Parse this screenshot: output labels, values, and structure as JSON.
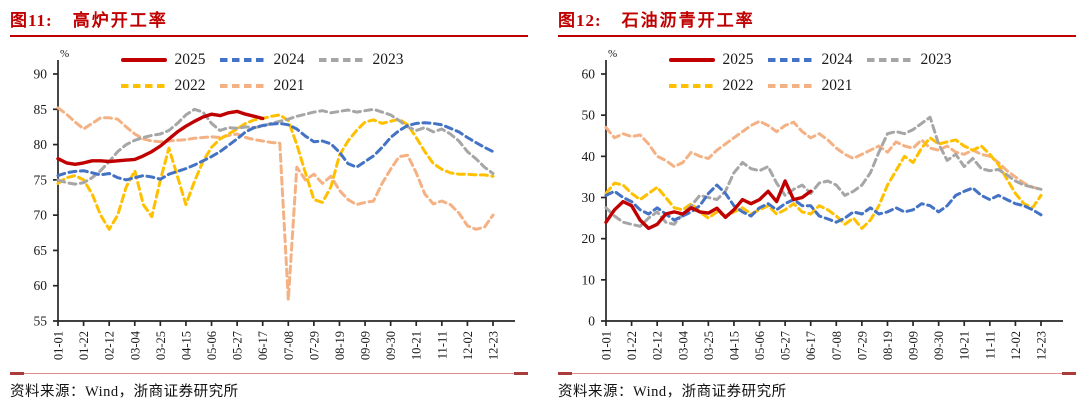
{
  "charts": [
    {
      "figure_label": "图11:",
      "title": "高炉开工率",
      "source": "资料来源：Wind，浙商证券研究所"
    },
    {
      "figure_label": "图12:",
      "title": "石油沥青开工率",
      "source": "资料来源：Wind，浙商证券研究所"
    }
  ],
  "colors": {
    "title_red": "#c00000",
    "header_rule": "#c00000",
    "footer_rule_thin": "#e58b8b",
    "footer_rule_caps": "#ab3c3c",
    "series_2025": "#c00000",
    "series_2024": "#4472c4",
    "series_2023": "#a6a6a6",
    "series_2022": "#ffc000",
    "series_2021": "#f4b183"
  },
  "chart_data": [
    {
      "type": "line",
      "title": "高炉开工率",
      "unit": "%",
      "ylim": [
        55,
        90
      ],
      "ytick_step": 5,
      "grid": false,
      "legend_position": "top-inside",
      "legend_rows": [
        [
          "2025",
          "2024",
          "2023"
        ],
        [
          "2022",
          "2021"
        ]
      ],
      "x_tick_labels": [
        "01-01",
        "01-22",
        "02-12",
        "03-04",
        "03-25",
        "04-15",
        "05-06",
        "05-27",
        "06-17",
        "07-08",
        "07-29",
        "08-19",
        "09-09",
        "09-30",
        "10-21",
        "11-11",
        "12-02",
        "12-23"
      ],
      "x_weeks_total": 51,
      "tick_every_weeks": 3,
      "series": [
        {
          "name": "2025",
          "color": "#c00000",
          "dash": "solid",
          "width": 3.4,
          "values": [
            78,
            77.4,
            77.2,
            77.4,
            77.7,
            77.7,
            77.6,
            77.7,
            77.8,
            77.9,
            78.4,
            79.0,
            79.8,
            80.8,
            81.8,
            82.6,
            83.3,
            83.9,
            84.3,
            84.1,
            84.5,
            84.7,
            84.3,
            84.0,
            83.7,
            null,
            null,
            null,
            null,
            null,
            null,
            null,
            null,
            null,
            null,
            null,
            null,
            null,
            null,
            null,
            null,
            null,
            null,
            null,
            null,
            null,
            null,
            null,
            null,
            null,
            null,
            null
          ]
        },
        {
          "name": "2024",
          "color": "#4472c4",
          "dash": "dashed",
          "width": 3,
          "values": [
            75.6,
            76.0,
            76.2,
            76.3,
            76.0,
            75.7,
            75.9,
            75.3,
            75.0,
            75.3,
            75.6,
            75.4,
            75.1,
            75.8,
            76.2,
            76.6,
            77.1,
            77.7,
            78.3,
            79.0,
            79.9,
            80.8,
            81.8,
            82.4,
            82.7,
            82.9,
            83.0,
            82.8,
            82.2,
            81.2,
            80.4,
            80.5,
            80.1,
            78.9,
            77.3,
            76.8,
            77.6,
            78.4,
            79.6,
            81.0,
            82.0,
            82.7,
            83.0,
            83.1,
            83.0,
            82.8,
            82.3,
            81.8,
            81.0,
            80.3,
            79.6,
            79.0
          ]
        },
        {
          "name": "2023",
          "color": "#a6a6a6",
          "dash": "dashed",
          "width": 3,
          "values": [
            75.0,
            74.6,
            74.4,
            74.6,
            75.3,
            76.3,
            77.6,
            79.0,
            80.0,
            80.6,
            81.0,
            81.3,
            81.5,
            82.0,
            83.0,
            84.2,
            85.0,
            84.6,
            83.0,
            82.0,
            82.4,
            82.3,
            82.5,
            82.4,
            82.6,
            83.0,
            83.3,
            83.6,
            84.0,
            84.3,
            84.6,
            84.8,
            84.5,
            84.7,
            84.9,
            84.6,
            84.8,
            85.0,
            84.6,
            84.2,
            83.4,
            82.5,
            82.0,
            82.4,
            81.8,
            82.2,
            81.5,
            80.5,
            79.0,
            78.0,
            76.8,
            75.9
          ]
        },
        {
          "name": "2022",
          "color": "#ffc000",
          "dash": "dashed",
          "width": 3,
          "values": [
            74.5,
            75.3,
            75.6,
            75.0,
            73.0,
            70.0,
            68.0,
            70.0,
            74.0,
            76.3,
            71.5,
            69.8,
            75.0,
            79.5,
            75.5,
            71.5,
            74.8,
            77.6,
            79.6,
            80.8,
            81.5,
            82.2,
            83.0,
            83.5,
            83.7,
            84.0,
            84.2,
            83.4,
            80.0,
            76.0,
            72.2,
            71.8,
            74.0,
            78.5,
            80.5,
            82.0,
            83.2,
            83.5,
            83.0,
            83.3,
            83.6,
            82.8,
            81.0,
            79.0,
            77.3,
            76.5,
            76.0,
            75.8,
            75.8,
            75.7,
            75.7,
            75.5
          ]
        },
        {
          "name": "2021",
          "color": "#f4b183",
          "dash": "dashed",
          "width": 3,
          "values": [
            85.2,
            84.3,
            83.2,
            82.2,
            83.0,
            83.8,
            83.8,
            83.6,
            82.5,
            81.5,
            80.8,
            80.5,
            80.4,
            80.5,
            80.6,
            80.7,
            80.9,
            81.0,
            81.1,
            81.0,
            81.3,
            81.5,
            81.0,
            80.7,
            80.5,
            80.3,
            80.2,
            58.0,
            76.8,
            75.0,
            75.8,
            74.5,
            75.5,
            73.5,
            72.2,
            71.5,
            71.8,
            72.0,
            74.5,
            76.5,
            78.3,
            78.5,
            76.0,
            73.0,
            71.6,
            72.0,
            71.5,
            70.3,
            68.5,
            68.0,
            68.3,
            70.0
          ]
        }
      ]
    },
    {
      "type": "line",
      "title": "石油沥青开工率",
      "unit": "%",
      "ylim": [
        0,
        60
      ],
      "ytick_step": 10,
      "grid": false,
      "legend_position": "top-inside",
      "legend_rows": [
        [
          "2025",
          "2024",
          "2023"
        ],
        [
          "2022",
          "2021"
        ]
      ],
      "x_tick_labels": [
        "01-01",
        "01-22",
        "02-12",
        "03-04",
        "03-25",
        "04-15",
        "05-06",
        "05-27",
        "06-17",
        "07-08",
        "07-29",
        "08-19",
        "09-09",
        "09-30",
        "10-21",
        "11-11",
        "12-02",
        "12-23"
      ],
      "x_weeks_total": 51,
      "tick_every_weeks": 3,
      "series": [
        {
          "name": "2025",
          "color": "#c00000",
          "dash": "solid",
          "width": 3.4,
          "values": [
            24,
            27,
            29,
            28,
            24.5,
            22.5,
            23.5,
            26,
            26.5,
            26,
            27.5,
            26.5,
            26.2,
            27.4,
            25.2,
            27,
            29.5,
            28.5,
            29.5,
            31.5,
            29,
            34,
            29.5,
            30,
            31.5,
            null,
            null,
            null,
            null,
            null,
            null,
            null,
            null,
            null,
            null,
            null,
            null,
            null,
            null,
            null,
            null,
            null,
            null,
            null,
            null,
            null,
            null,
            null,
            null,
            null,
            null,
            null
          ]
        },
        {
          "name": "2024",
          "color": "#4472c4",
          "dash": "dashed",
          "width": 3,
          "values": [
            30.5,
            31.5,
            30,
            29,
            27,
            26,
            27.5,
            26,
            24.5,
            25.5,
            26.5,
            28,
            31,
            33,
            31,
            28,
            26.5,
            25.5,
            27.5,
            28.5,
            27,
            28.5,
            29.5,
            28,
            28,
            25.5,
            24.8,
            24,
            25,
            26.5,
            26,
            27.5,
            26,
            26.5,
            27.5,
            26.5,
            27,
            28.5,
            28,
            26.5,
            28,
            30.5,
            31.5,
            32.3,
            30.5,
            29.5,
            30.5,
            29.5,
            28.5,
            28,
            27,
            25.8
          ]
        },
        {
          "name": "2023",
          "color": "#a6a6a6",
          "dash": "dashed",
          "width": 3,
          "values": [
            27.5,
            25.5,
            24,
            23.5,
            23,
            25,
            26.5,
            24,
            23.5,
            26,
            28,
            30.5,
            30,
            29.5,
            31.5,
            36,
            38.5,
            37,
            36.5,
            37.5,
            33.5,
            30.5,
            32,
            33,
            31,
            33.5,
            34,
            33,
            30.5,
            31.5,
            33,
            36,
            41,
            45.5,
            46,
            45.5,
            46.5,
            48,
            49.5,
            43,
            39,
            40.5,
            37.5,
            39.5,
            37,
            36.5,
            36.8,
            35.5,
            34,
            33,
            32.5,
            32
          ]
        },
        {
          "name": "2022",
          "color": "#ffc000",
          "dash": "dashed",
          "width": 3,
          "values": [
            31,
            33.5,
            33,
            31,
            29.5,
            31,
            32.5,
            30,
            27.5,
            27,
            28.5,
            26.5,
            25,
            26.5,
            25.5,
            26.5,
            27.5,
            26,
            27,
            28,
            26,
            27,
            28.5,
            26.5,
            26,
            28,
            27,
            25.5,
            23.5,
            25,
            22.5,
            24.5,
            28,
            33,
            36.5,
            40,
            38.5,
            42,
            44.5,
            43,
            43.5,
            44,
            42.5,
            41.5,
            42.5,
            40.5,
            38,
            34.5,
            31,
            28.5,
            27.5,
            30.5
          ]
        },
        {
          "name": "2021",
          "color": "#f4b183",
          "dash": "dashed",
          "width": 3,
          "values": [
            47,
            44.5,
            45.5,
            44.8,
            45.2,
            43,
            40,
            39,
            37.5,
            38.5,
            41,
            40,
            39.5,
            41.5,
            43,
            44.5,
            46,
            47.5,
            48.5,
            47.5,
            46,
            47.5,
            48.3,
            46,
            44.5,
            45.5,
            44,
            42,
            40.5,
            39.5,
            40.5,
            41.5,
            42.5,
            41,
            43.5,
            42.5,
            42,
            44,
            42,
            41.5,
            42.5,
            41,
            40.5,
            41.5,
            40.5,
            40,
            38.5,
            36.5,
            35,
            33.5,
            32.5,
            32
          ]
        }
      ]
    }
  ]
}
